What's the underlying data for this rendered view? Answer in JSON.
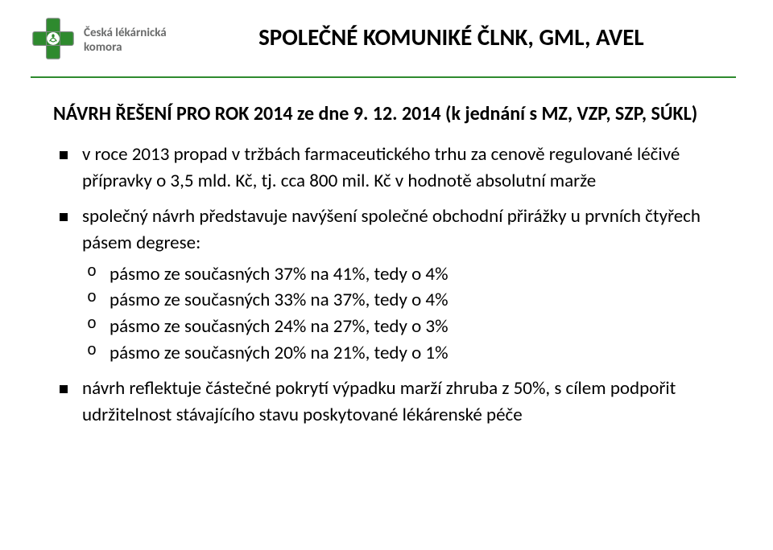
{
  "logo": {
    "line1": "Česká lékárnická",
    "line2": "komora",
    "cross_color": "#2e8a2e",
    "cross_border": "#808884",
    "circle_color": "#ffffff"
  },
  "title": "SPOLEČNÉ KOMUNIKÉ ČLNK, GML, AVEL",
  "subhead": "NÁVRH ŘEŠENÍ PRO ROK 2014 ze dne 9. 12. 2014 (k jednání s MZ, VZP, SZP, SÚKL)",
  "bullets": [
    {
      "text": "v roce 2013 propad v tržbách farmaceutického trhu za cenově regulované léčivé přípravky o 3,5 mld. Kč, tj. cca 800 mil. Kč v hodnotě absolutní marže"
    },
    {
      "text": "společný návrh představuje navýšení společné obchodní přirážky u prvních čtyřech pásem degrese:",
      "sub": [
        "pásmo ze současných 37% na 41%, tedy o 4%",
        "pásmo ze současných 33% na 37%, tedy o 4%",
        "pásmo ze současných 24% na 27%, tedy o 3%",
        "pásmo ze současných 20% na 21%, tedy o 1%"
      ]
    },
    {
      "text": "návrh reflektuje částečné pokrytí výpadku marží zhruba z 50%, s cílem podpořit udržitelnost stávajícího stavu poskytované lékárenské péče"
    }
  ]
}
